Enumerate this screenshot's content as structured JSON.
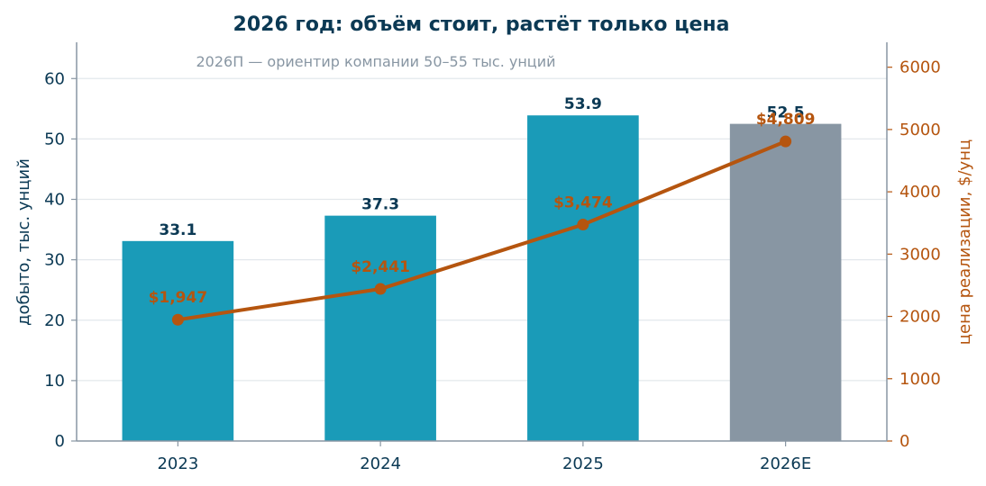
{
  "chart_data": {
    "type": "bar",
    "title": "2026 год: объём стоит, растёт только цена",
    "subtitle": "2026П — ориентир компании 50–55 тыс. унций",
    "categories": [
      "2023",
      "2024",
      "2025",
      "2026E"
    ],
    "ylabel_left": "добыто, тыс. унций",
    "ylabel_right": "цена реализации, $/унц",
    "ylim_left": [
      0,
      66
    ],
    "yticks_left": [
      0,
      10,
      20,
      30,
      40,
      50,
      60
    ],
    "ylim_right": [
      0,
      6400
    ],
    "yticks_right": [
      0,
      1000,
      2000,
      3000,
      4000,
      5000,
      6000
    ],
    "grid": true,
    "series": [
      {
        "kind": "bar",
        "axis": "left",
        "values": [
          33.1,
          37.3,
          53.9,
          52.5
        ],
        "labels": [
          "33.1",
          "37.3",
          "53.9",
          "52.5"
        ],
        "colors": [
          "#1a9bb8",
          "#1a9bb8",
          "#1a9bb8",
          "#8896a3"
        ]
      },
      {
        "kind": "line",
        "axis": "right",
        "values": [
          1947,
          2441,
          3474,
          4809
        ],
        "labels": [
          "$1,947",
          "$2,441",
          "$3,474",
          "$4,809"
        ],
        "color": "#b5550f"
      }
    ],
    "colors": {
      "bar": "#1a9bb8",
      "bar_forecast": "#8896a3",
      "line": "#b5550f",
      "title": "#0b3954",
      "axis": "#8896a3",
      "grid": "#e3e8ec"
    }
  }
}
